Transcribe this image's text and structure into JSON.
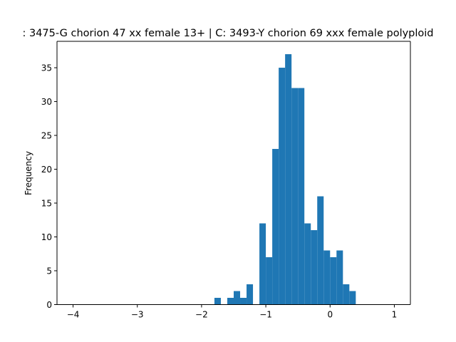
{
  "chart_data": {
    "type": "bar",
    "title": ": 3475-G chorion 47 xx female 13+ | C: 3493-Y chorion 69 xxx female polyploid",
    "xlabel": "",
    "ylabel": "Frequency",
    "xlim": [
      -4.25,
      1.25
    ],
    "ylim": [
      0,
      38.9
    ],
    "x_ticks": [
      -4,
      -3,
      -2,
      -1,
      0,
      1
    ],
    "x_tick_labels": [
      "−4",
      "−3",
      "−2",
      "−1",
      "0",
      "1"
    ],
    "y_ticks": [
      0,
      5,
      10,
      15,
      20,
      25,
      30,
      35
    ],
    "y_tick_labels": [
      "0",
      "5",
      "10",
      "15",
      "20",
      "25",
      "30",
      "35"
    ],
    "bar_color": "#1f77b4",
    "bins": [
      {
        "x0": -1.8,
        "x1": -1.7,
        "value": 1
      },
      {
        "x0": -1.6,
        "x1": -1.5,
        "value": 1
      },
      {
        "x0": -1.5,
        "x1": -1.4,
        "value": 2
      },
      {
        "x0": -1.4,
        "x1": -1.3,
        "value": 1
      },
      {
        "x0": -1.3,
        "x1": -1.2,
        "value": 3
      },
      {
        "x0": -1.1,
        "x1": -1.0,
        "value": 12
      },
      {
        "x0": -1.0,
        "x1": -0.9,
        "value": 7
      },
      {
        "x0": -0.9,
        "x1": -0.8,
        "value": 23
      },
      {
        "x0": -0.8,
        "x1": -0.7,
        "value": 35
      },
      {
        "x0": -0.7,
        "x1": -0.6,
        "value": 37
      },
      {
        "x0": -0.6,
        "x1": -0.5,
        "value": 32
      },
      {
        "x0": -0.5,
        "x1": -0.4,
        "value": 32
      },
      {
        "x0": -0.4,
        "x1": -0.3,
        "value": 12
      },
      {
        "x0": -0.3,
        "x1": -0.2,
        "value": 11
      },
      {
        "x0": -0.2,
        "x1": -0.1,
        "value": 16
      },
      {
        "x0": -0.1,
        "x1": 0.0,
        "value": 8
      },
      {
        "x0": 0.0,
        "x1": 0.1,
        "value": 7
      },
      {
        "x0": 0.1,
        "x1": 0.2,
        "value": 8
      },
      {
        "x0": 0.2,
        "x1": 0.3,
        "value": 3
      },
      {
        "x0": 0.3,
        "x1": 0.4,
        "value": 2
      }
    ]
  }
}
